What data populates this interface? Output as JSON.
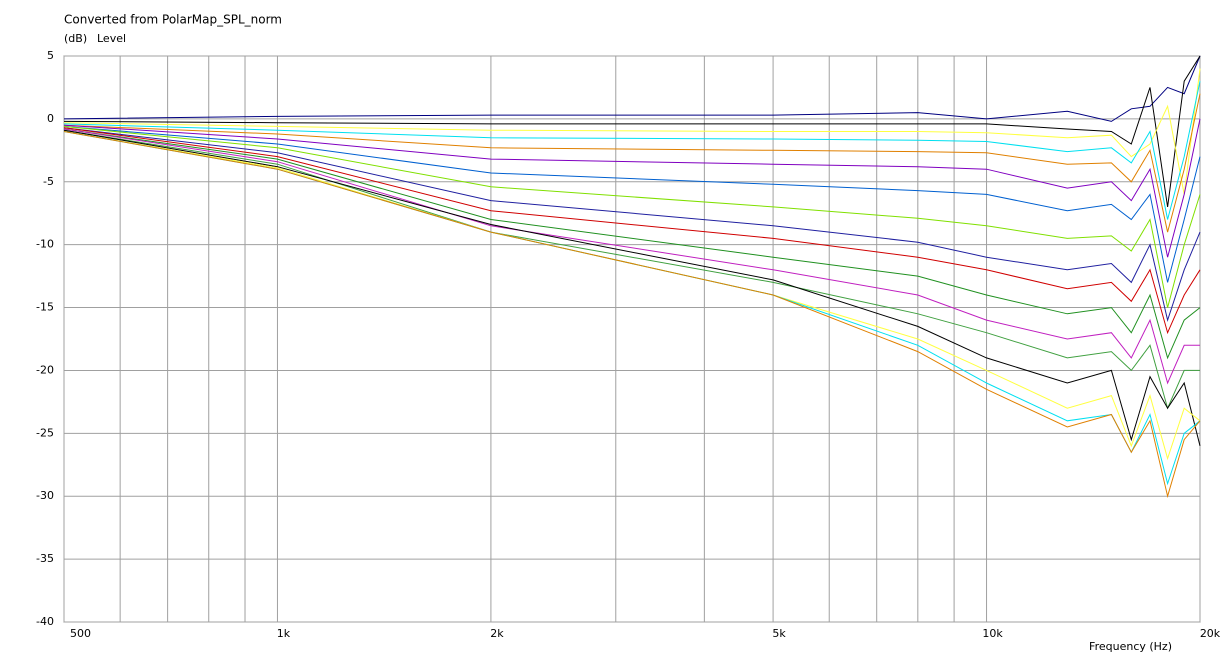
{
  "chart_data": {
    "type": "line",
    "title": "Converted from PolarMap_SPL_norm",
    "y_unit": "(dB)",
    "y_label": "Level",
    "x_label": "Frequency (Hz)",
    "log_x": true,
    "grid": true,
    "xlim": [
      500,
      20000
    ],
    "ylim": [
      -40,
      5
    ],
    "xticks": [
      {
        "value": 500,
        "label": "500"
      },
      {
        "value": 1000,
        "label": "1k"
      },
      {
        "value": 2000,
        "label": "2k"
      },
      {
        "value": 5000,
        "label": "5k"
      },
      {
        "value": 10000,
        "label": "10k"
      },
      {
        "value": 20000,
        "label": "20k"
      }
    ],
    "xminor_ticks": [
      600,
      700,
      800,
      900,
      3000,
      4000,
      6000,
      7000,
      8000,
      9000
    ],
    "yticks": [
      5,
      0,
      -5,
      -10,
      -15,
      -20,
      -25,
      -30,
      -35,
      -40
    ],
    "x": [
      500,
      1000,
      2000,
      5000,
      8000,
      10000,
      13000,
      15000,
      16000,
      17000,
      18000,
      19000,
      20000
    ],
    "series": [
      {
        "color": "#000080",
        "values": [
          0,
          0.2,
          0.3,
          0.3,
          0.5,
          0,
          0.6,
          -0.2,
          0.8,
          1,
          2.5,
          2,
          5
        ]
      },
      {
        "color": "#000000",
        "values": [
          -0.2,
          -0.3,
          -0.4,
          -0.4,
          -0.4,
          -0.4,
          -0.8,
          -1,
          -2,
          2.5,
          -7,
          3,
          5
        ]
      },
      {
        "color": "#ffff40",
        "values": [
          -0.3,
          -0.6,
          -0.9,
          -1,
          -1,
          -1.1,
          -1.5,
          -1.3,
          -3,
          -2,
          1,
          -6,
          4
        ]
      },
      {
        "color": "#00e0f0",
        "values": [
          -0.4,
          -0.9,
          -1.5,
          -1.6,
          -1.7,
          -1.8,
          -2.6,
          -2.3,
          -3.5,
          -1,
          -8,
          -3,
          3
        ]
      },
      {
        "color": "#e08000",
        "values": [
          -0.5,
          -1.2,
          -2.3,
          -2.5,
          -2.6,
          -2.7,
          -3.6,
          -3.5,
          -5,
          -2.5,
          -9,
          -4,
          2
        ]
      },
      {
        "color": "#8000c0",
        "values": [
          -0.5,
          -1.6,
          -3.2,
          -3.6,
          -3.8,
          -4,
          -5.5,
          -5,
          -6.5,
          -4,
          -11,
          -6,
          0
        ]
      },
      {
        "color": "#0060d0",
        "values": [
          -0.6,
          -2.0,
          -4.3,
          -5.2,
          -5.7,
          -6,
          -7.3,
          -6.8,
          -8,
          -6,
          -13,
          -8,
          -3
        ]
      },
      {
        "color": "#80e000",
        "values": [
          -0.6,
          -2.3,
          -5.4,
          -7,
          -7.9,
          -8.5,
          -9.5,
          -9.3,
          -10.5,
          -8,
          -15,
          -10,
          -6
        ]
      },
      {
        "color": "#2020a0",
        "values": [
          -0.7,
          -2.7,
          -6.5,
          -8.5,
          -9.8,
          -11,
          -12,
          -11.5,
          -13,
          -10,
          -16,
          -12,
          -9
        ]
      },
      {
        "color": "#d00000",
        "values": [
          -0.7,
          -3.0,
          -7.3,
          -9.5,
          -11,
          -12,
          -13.5,
          -13,
          -14.5,
          -12,
          -17,
          -14,
          -12
        ]
      },
      {
        "color": "#209020",
        "values": [
          -0.8,
          -3.2,
          -8.0,
          -11,
          -12.5,
          -14,
          -15.5,
          -15,
          -17,
          -14,
          -19,
          -16,
          -15
        ]
      },
      {
        "color": "#c020c0",
        "values": [
          -0.8,
          -3.4,
          -8.5,
          -12,
          -14,
          -16,
          -17.5,
          -17,
          -19,
          -16,
          -21,
          -18,
          -18
        ]
      },
      {
        "color": "#40a040",
        "values": [
          -0.9,
          -3.6,
          -9.0,
          -13,
          -15.5,
          -17,
          -19,
          -18.5,
          -20,
          -18,
          -23,
          -20,
          -20
        ]
      },
      {
        "color": "#000000",
        "values": [
          -0.9,
          -3.8,
          -8.4,
          -12.8,
          -16.5,
          -19,
          -21,
          -20,
          -25.5,
          -20.5,
          -23,
          -21,
          -26
        ]
      },
      {
        "color": "#ffff40",
        "values": [
          -1,
          -3.9,
          -9,
          -14,
          -17.5,
          -20,
          -23,
          -22,
          -26,
          -22,
          -27,
          -23,
          -24
        ]
      },
      {
        "color": "#00e0f0",
        "values": [
          -1,
          -4,
          -9,
          -14,
          -18,
          -21,
          -24,
          -23.5,
          -26.5,
          -23.5,
          -29,
          -25,
          -24
        ]
      },
      {
        "color": "#e08000",
        "values": [
          -1,
          -4,
          -9,
          -14,
          -18.5,
          -21.5,
          -24.5,
          -23.5,
          -26.5,
          -24,
          -30,
          -25.5,
          -24
        ]
      }
    ]
  }
}
